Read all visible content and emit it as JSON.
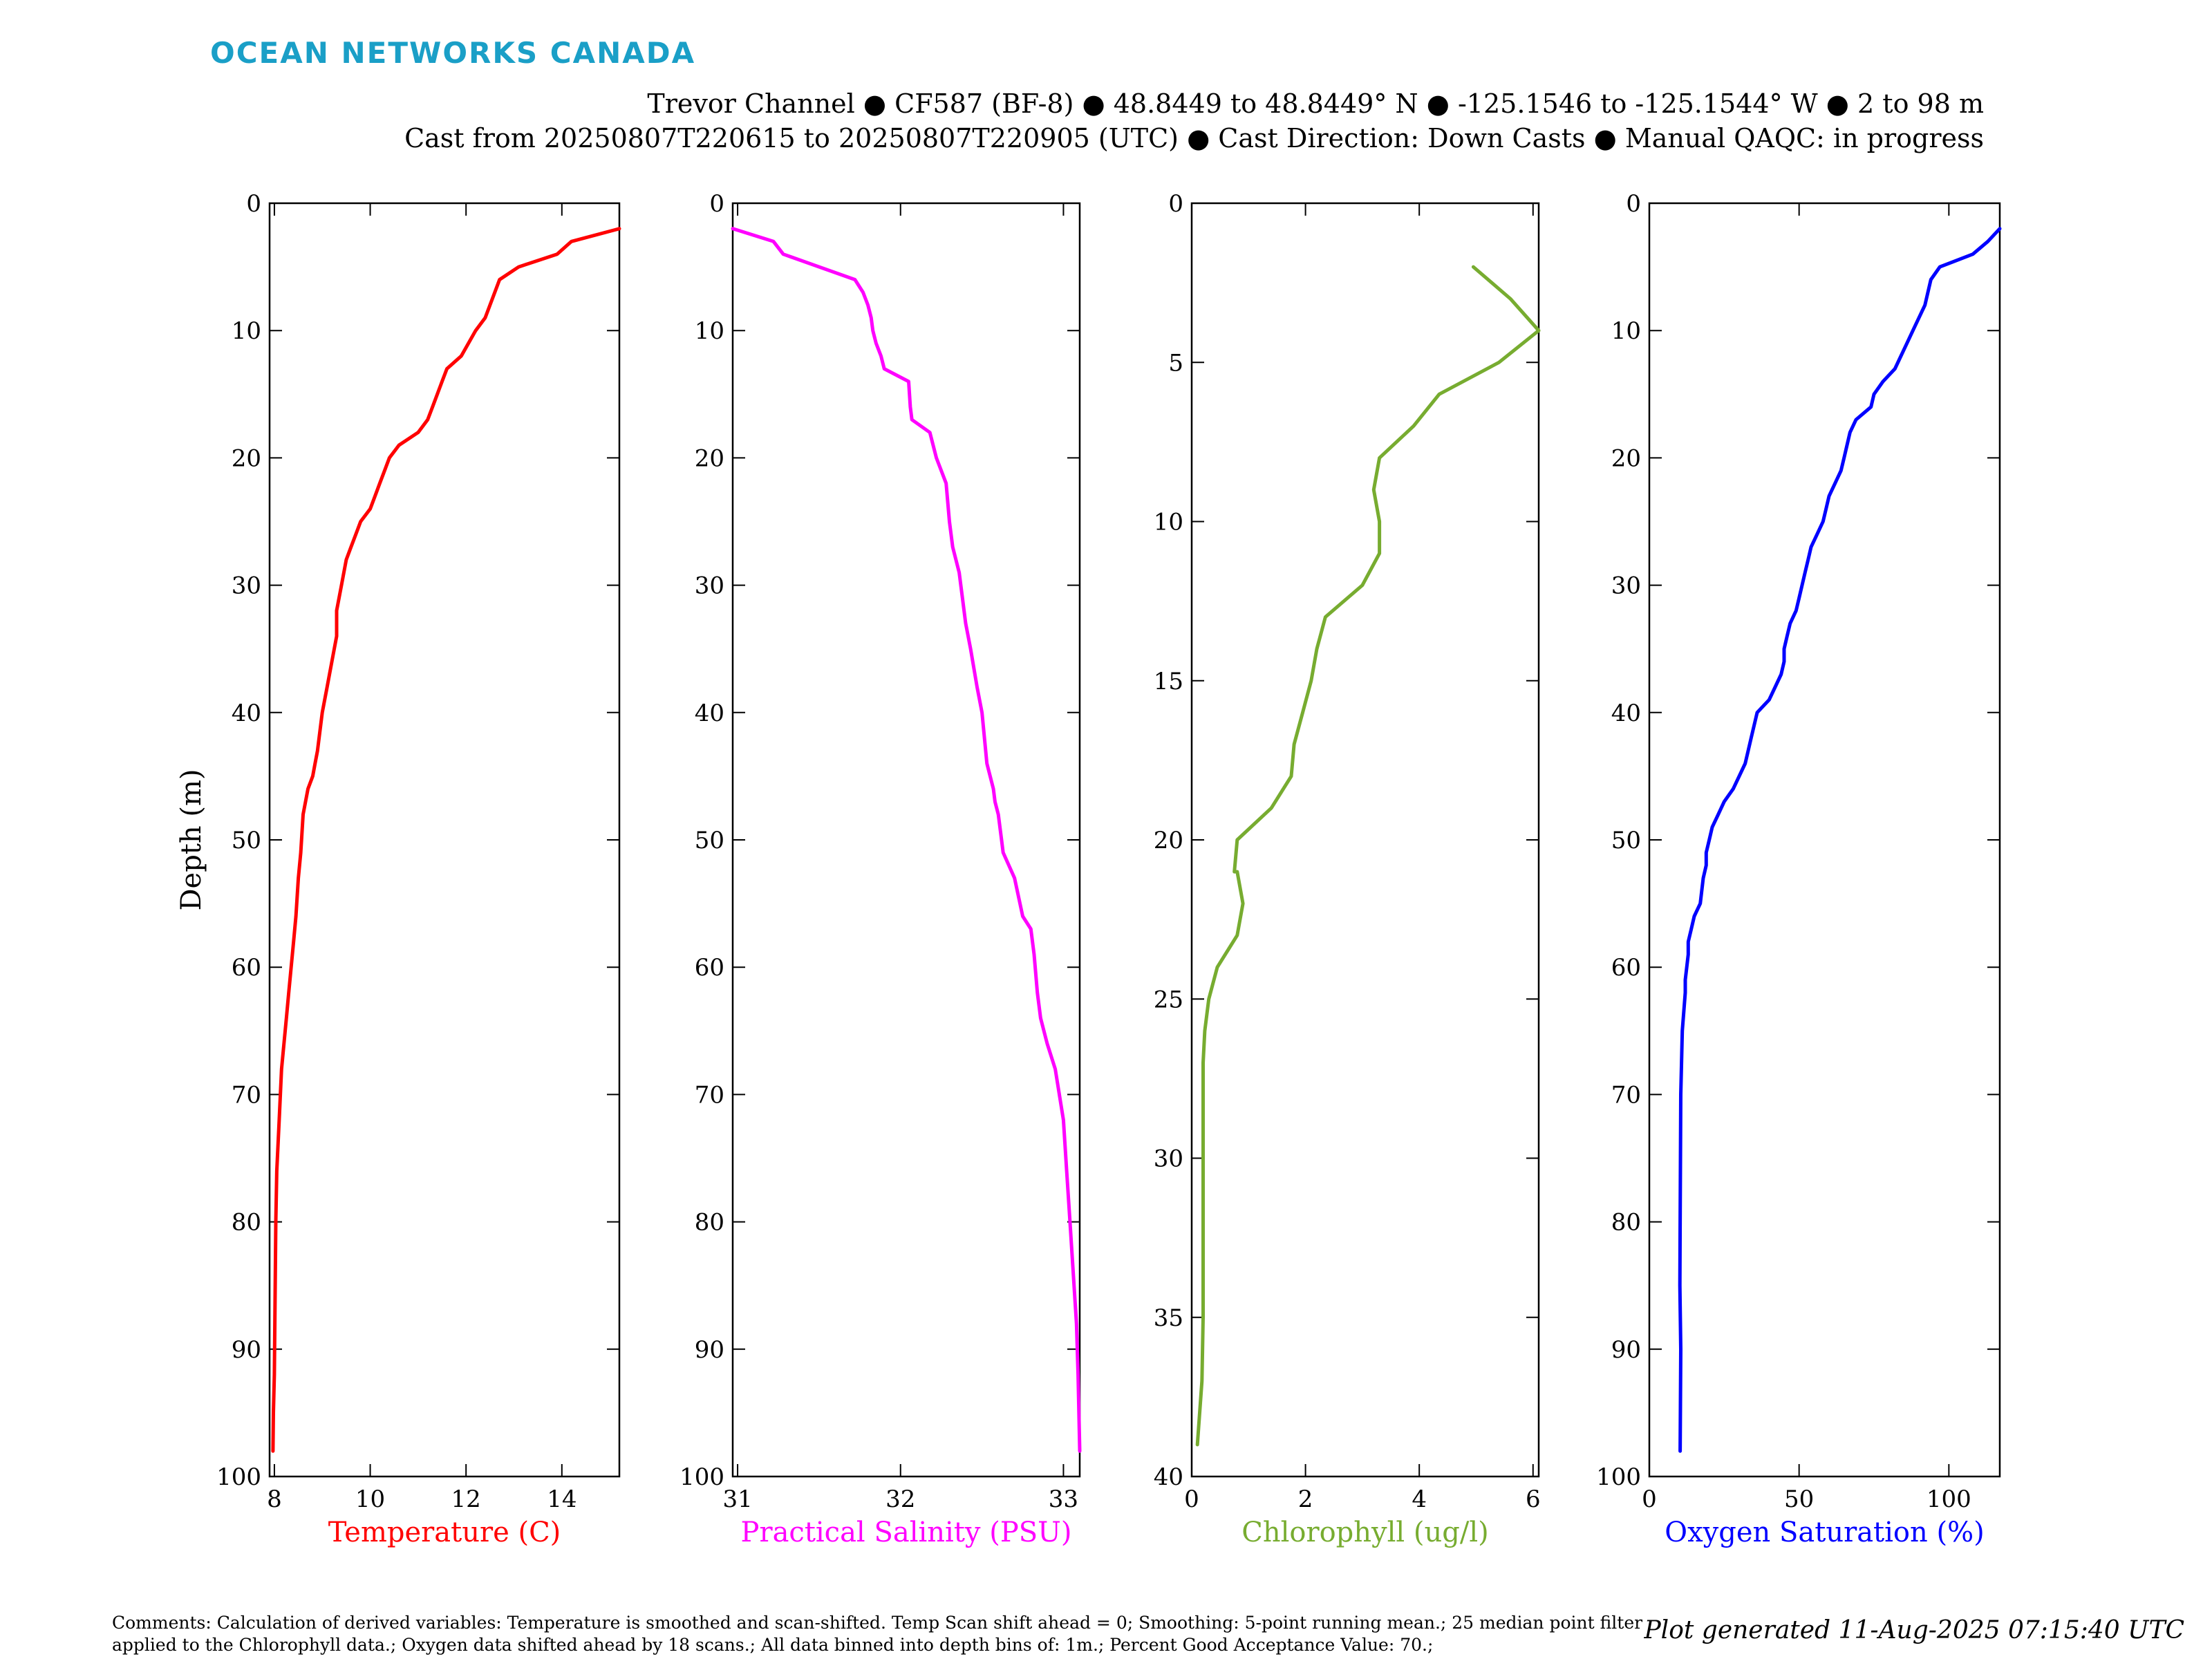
{
  "header": {
    "logo_text": "OCEAN NETWORKS CANADA",
    "title_line1": "Trevor Channel ● CF587 (BF-8) ● 48.8449 to 48.8449° N ● -125.1546 to -125.1544° W ● 2 to 98 m",
    "title_line2": "Cast from 20250807T220615 to 20250807T220905 (UTC) ● Cast Direction: Down Casts ● Manual QAQC: in progress"
  },
  "footer": {
    "comments": "Comments: Calculation of derived variables: Temperature is smoothed and scan-shifted. Temp Scan shift ahead = 0; Smoothing: 5-point running mean.; 25 median point filter applied to the Chlorophyll data.; Oxygen data shifted ahead by 18 scans.; All data binned into depth bins of: 1m.; Percent Good Acceptance Value: 70.;",
    "generated": "Plot generated 11-Aug-2025 07:15:40 UTC"
  },
  "chart_data": [
    {
      "type": "line",
      "ylabel": "Depth (m)",
      "xlabel": "Temperature (C)",
      "color": "#ff0000",
      "xlim": [
        7.9,
        15.2
      ],
      "ylim": [
        0,
        100
      ],
      "xticks": [
        8,
        10,
        12,
        14
      ],
      "yticks": [
        0,
        10,
        20,
        30,
        40,
        50,
        60,
        70,
        80,
        90,
        100
      ],
      "y_reversed": true,
      "series": [
        {
          "x": [
            15.2,
            14.2,
            13.9,
            13.1,
            12.7,
            12.6,
            12.4,
            12.2,
            11.9,
            11.6,
            11.5,
            11.3,
            11.2,
            11.0,
            10.6,
            10.4,
            10.3,
            10.2,
            10.1,
            10.0,
            9.8,
            9.7,
            9.6,
            9.5,
            9.4,
            9.3,
            9.3,
            9.2,
            9.1,
            9.0,
            8.9,
            8.85,
            8.8,
            8.7,
            8.6,
            8.55,
            8.5,
            8.45,
            8.4,
            8.35,
            8.3,
            8.25,
            8.2,
            8.15,
            8.1,
            8.05,
            8.03,
            8.02,
            8.01,
            8.0,
            7.98,
            7.97
          ],
          "y": [
            2,
            3,
            4,
            5,
            6,
            7,
            9,
            10,
            12,
            13,
            14,
            16,
            17,
            18,
            19,
            20,
            21,
            22,
            23,
            24,
            25,
            26,
            27,
            28,
            30,
            32,
            34,
            36,
            38,
            40,
            43,
            44,
            45,
            46,
            48,
            51,
            53,
            56,
            58,
            60,
            62,
            64,
            66,
            68,
            72,
            76,
            80,
            84,
            88,
            92,
            95,
            98
          ]
        }
      ]
    },
    {
      "type": "line",
      "ylabel": "",
      "xlabel": "Practical Salinity (PSU)",
      "color": "#ff00ff",
      "xlim": [
        30.97,
        33.1
      ],
      "ylim": [
        0,
        100
      ],
      "xticks": [
        31,
        32,
        33
      ],
      "yticks": [
        0,
        10,
        20,
        30,
        40,
        50,
        60,
        70,
        80,
        90,
        100
      ],
      "y_reversed": true,
      "series": [
        {
          "x": [
            30.97,
            31.22,
            31.28,
            31.72,
            31.77,
            31.8,
            31.82,
            31.83,
            31.85,
            31.88,
            31.9,
            32.05,
            32.06,
            32.07,
            32.18,
            32.2,
            32.22,
            32.28,
            32.3,
            32.32,
            32.36,
            32.38,
            32.4,
            32.43,
            32.47,
            32.5,
            32.53,
            32.55,
            32.57,
            32.58,
            32.6,
            32.62,
            32.63,
            32.7,
            32.75,
            32.8,
            32.82,
            32.84,
            32.86,
            32.9,
            32.95,
            33.0,
            33.02,
            33.04,
            33.06,
            33.08,
            33.09,
            33.1
          ],
          "y": [
            2,
            3,
            4,
            6,
            7,
            8,
            9,
            10,
            11,
            12,
            13,
            14,
            16,
            17,
            18,
            19,
            20,
            22,
            25,
            27,
            29,
            31,
            33,
            35,
            38,
            40,
            44,
            45,
            46,
            47,
            48,
            50,
            51,
            53,
            56,
            57,
            59,
            62,
            64,
            66,
            68,
            72,
            76,
            80,
            84,
            88,
            92,
            98
          ]
        }
      ]
    },
    {
      "type": "line",
      "ylabel": "",
      "xlabel": "Chlorophyll (ug/l)",
      "color": "#77ac30",
      "xlim": [
        0,
        6.1
      ],
      "ylim": [
        0,
        40
      ],
      "xticks": [
        0,
        2,
        4,
        6
      ],
      "yticks": [
        0,
        5,
        10,
        15,
        20,
        25,
        30,
        35,
        40
      ],
      "y_reversed": true,
      "series": [
        {
          "x": [
            4.95,
            5.6,
            6.1,
            5.4,
            4.35,
            3.9,
            3.3,
            3.2,
            3.3,
            3.3,
            3.0,
            2.35,
            2.2,
            2.1,
            1.95,
            1.8,
            1.75,
            1.4,
            0.8,
            0.75,
            0.8,
            0.9,
            0.8,
            0.45,
            0.3,
            0.23,
            0.2,
            0.2,
            0.2,
            0.2,
            0.2,
            0.2,
            0.2,
            0.2,
            0.2,
            0.18,
            0.1
          ],
          "y": [
            2,
            3,
            4,
            5,
            6,
            7,
            8,
            9,
            10,
            11,
            12,
            13,
            14,
            15,
            16,
            17,
            18,
            19,
            20,
            21,
            21,
            22,
            23,
            24,
            25,
            26,
            27,
            28,
            29,
            30,
            31,
            32,
            33,
            34,
            35,
            37,
            39
          ]
        }
      ]
    },
    {
      "type": "line",
      "ylabel": "",
      "xlabel": "Oxygen Saturation (%)",
      "color": "#0000ff",
      "xlim": [
        0,
        117
      ],
      "ylim": [
        0,
        100
      ],
      "xticks": [
        0,
        50,
        100
      ],
      "yticks": [
        0,
        10,
        20,
        30,
        40,
        50,
        60,
        70,
        80,
        90,
        100
      ],
      "y_reversed": true,
      "series": [
        {
          "x": [
            117,
            113,
            108,
            97,
            94,
            93,
            92,
            90,
            88,
            86,
            84,
            82,
            78,
            75,
            74,
            69,
            67,
            66,
            65,
            64,
            62,
            60,
            59,
            58,
            56,
            54,
            53,
            52,
            51,
            50,
            49,
            47,
            46,
            45,
            45,
            44,
            42,
            40,
            36,
            34,
            33,
            32,
            28,
            25,
            23,
            21,
            20,
            19,
            19,
            18,
            17,
            15,
            14,
            13,
            13,
            12,
            12,
            11,
            10.5,
            10.3,
            10.2,
            10.5,
            10.3
          ],
          "y": [
            2,
            3,
            4,
            5,
            6,
            7,
            8,
            9,
            10,
            11,
            12,
            13,
            14,
            15,
            16,
            17,
            18,
            19,
            20,
            21,
            22,
            23,
            24,
            25,
            26,
            27,
            28,
            29,
            30,
            31,
            32,
            33,
            34,
            35,
            36,
            37,
            38,
            39,
            40,
            42,
            43,
            44,
            46,
            47,
            48,
            49,
            50,
            51,
            52,
            53,
            55,
            56,
            57,
            58,
            59,
            61,
            62,
            65,
            70,
            80,
            85,
            90,
            98
          ]
        }
      ]
    }
  ]
}
